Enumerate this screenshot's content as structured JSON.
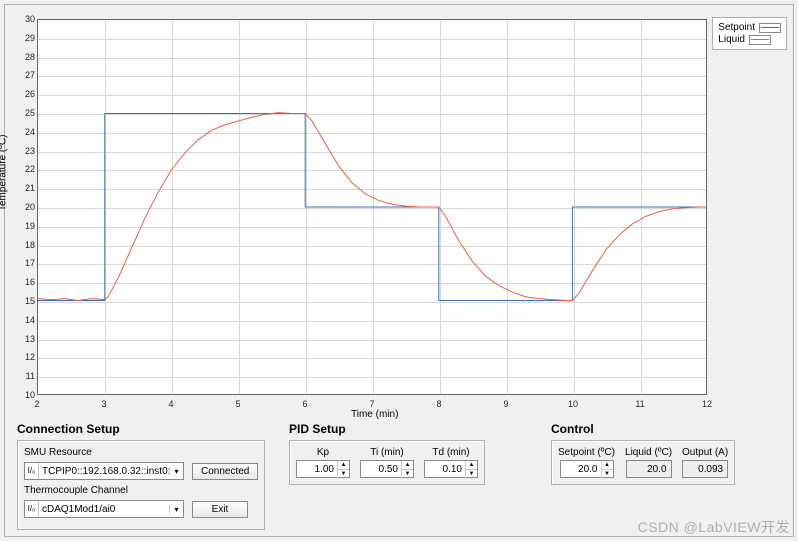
{
  "chart": {
    "type": "line",
    "ylabel": "Temperature (ºC)",
    "xlabel": "Time (min)",
    "xlim": [
      2,
      12
    ],
    "ylim": [
      10,
      30
    ],
    "xtick_step": 1,
    "ytick_step": 1,
    "background_color": "#ffffff",
    "grid_color": "#d8d8d8",
    "axis_color": "#666666",
    "label_fontsize": 10,
    "tick_fontsize": 9,
    "legend": {
      "position": "top-right",
      "box_border": "#b0b0b0",
      "items": [
        {
          "label": "Setpoint",
          "color": "#3a6fb0"
        },
        {
          "label": "Liquid",
          "color": "#e85c4a"
        }
      ]
    },
    "series": {
      "setpoint": {
        "color": "#3a6fb0",
        "line_width": 1,
        "points": [
          [
            2.0,
            15
          ],
          [
            3.0,
            15
          ],
          [
            3.0,
            25
          ],
          [
            6.0,
            25
          ],
          [
            6.0,
            20
          ],
          [
            8.0,
            20
          ],
          [
            8.0,
            15
          ],
          [
            10.0,
            15
          ],
          [
            10.0,
            20
          ],
          [
            12.0,
            20
          ]
        ]
      },
      "liquid": {
        "color": "#e85c4a",
        "line_width": 1,
        "points": [
          [
            2.0,
            15.1
          ],
          [
            2.2,
            15.05
          ],
          [
            2.4,
            15.1
          ],
          [
            2.6,
            15.0
          ],
          [
            2.8,
            15.1
          ],
          [
            3.0,
            15.05
          ],
          [
            3.05,
            15.2
          ],
          [
            3.2,
            16.2
          ],
          [
            3.4,
            17.8
          ],
          [
            3.6,
            19.4
          ],
          [
            3.8,
            20.8
          ],
          [
            4.0,
            22.0
          ],
          [
            4.2,
            22.9
          ],
          [
            4.4,
            23.6
          ],
          [
            4.6,
            24.1
          ],
          [
            4.8,
            24.4
          ],
          [
            5.0,
            24.6
          ],
          [
            5.2,
            24.8
          ],
          [
            5.4,
            24.95
          ],
          [
            5.6,
            25.05
          ],
          [
            5.8,
            25.0
          ],
          [
            6.0,
            25.0
          ],
          [
            6.1,
            24.6
          ],
          [
            6.3,
            23.4
          ],
          [
            6.5,
            22.2
          ],
          [
            6.7,
            21.3
          ],
          [
            6.9,
            20.7
          ],
          [
            7.1,
            20.35
          ],
          [
            7.3,
            20.15
          ],
          [
            7.5,
            20.05
          ],
          [
            7.7,
            20.0
          ],
          [
            7.9,
            20.0
          ],
          [
            8.0,
            20.0
          ],
          [
            8.1,
            19.5
          ],
          [
            8.3,
            18.2
          ],
          [
            8.5,
            17.1
          ],
          [
            8.7,
            16.3
          ],
          [
            8.9,
            15.8
          ],
          [
            9.1,
            15.45
          ],
          [
            9.3,
            15.2
          ],
          [
            9.5,
            15.1
          ],
          [
            9.7,
            15.05
          ],
          [
            9.9,
            15.0
          ],
          [
            10.0,
            15.0
          ],
          [
            10.1,
            15.4
          ],
          [
            10.3,
            16.6
          ],
          [
            10.5,
            17.7
          ],
          [
            10.7,
            18.5
          ],
          [
            10.9,
            19.1
          ],
          [
            11.1,
            19.5
          ],
          [
            11.3,
            19.75
          ],
          [
            11.5,
            19.9
          ],
          [
            11.7,
            19.97
          ],
          [
            11.9,
            20.0
          ],
          [
            12.0,
            20.0
          ]
        ]
      }
    }
  },
  "connection": {
    "title": "Connection Setup",
    "smu_label": "SMU Resource",
    "smu_value": "TCPIP0::192.168.0.32::inst0::",
    "tc_label": "Thermocouple Channel",
    "tc_value": "cDAQ1Mod1/ai0",
    "connected_btn": "Connected",
    "exit_btn": "Exit"
  },
  "pid": {
    "title": "PID Setup",
    "kp_label": "Kp",
    "ti_label": "Ti (min)",
    "td_label": "Td (min)",
    "kp": "1.00",
    "ti": "0.50",
    "td": "0.10"
  },
  "control": {
    "title": "Control",
    "setpoint_label": "Setpoint (ºC)",
    "liquid_label": "Liquid (ºC)",
    "output_label": "Output (A)",
    "setpoint": "20.0",
    "liquid": "20.0",
    "output": "0.093"
  },
  "watermark": "CSDN @LabVIEW开发"
}
